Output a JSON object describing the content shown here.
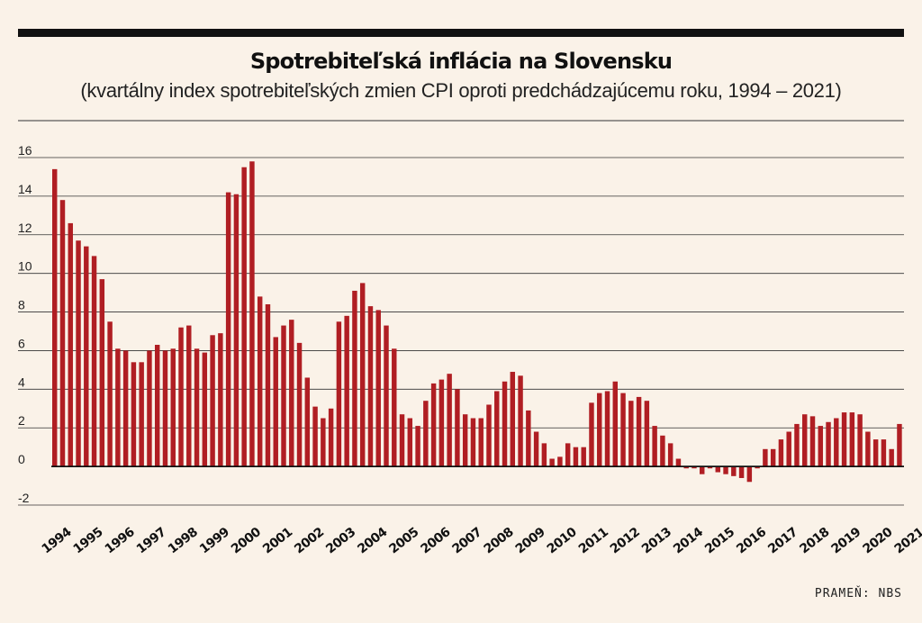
{
  "header": {
    "title": "Spotrebiteľská inflácia na Slovensku",
    "subtitle": "(kvartálny index spotrebiteľských zmien CPI oproti predchádzajúcemu roku, 1994 – 2021)"
  },
  "footer": {
    "source": "PRAMEŇ: NBS"
  },
  "colors": {
    "bar": "#b01e23",
    "background": "#faf2e8",
    "grid": "#333333"
  },
  "chart_data": {
    "type": "bar",
    "title": "Spotrebiteľská inflácia na Slovensku",
    "subtitle": "(kvartálny index spotrebiteľských zmien CPI oproti predchádzajúcemu roku, 1994 – 2021)",
    "xlabel": "",
    "ylabel": "",
    "ylim": [
      -2,
      16
    ],
    "y_ticks": [
      -2,
      0,
      2,
      4,
      6,
      8,
      10,
      12,
      14,
      16
    ],
    "grid": true,
    "years": [
      "1994",
      "1995",
      "1996",
      "1997",
      "1998",
      "1999",
      "2000",
      "2001",
      "2002",
      "2003",
      "2004",
      "2005",
      "2006",
      "2007",
      "2008",
      "2009",
      "2010",
      "2011",
      "2012",
      "2013",
      "2014",
      "2015",
      "2016",
      "2017",
      "2018",
      "2019",
      "2020",
      "2021"
    ],
    "values": [
      15.4,
      13.8,
      12.6,
      11.7,
      11.4,
      10.9,
      9.7,
      7.5,
      6.1,
      6.0,
      5.4,
      5.4,
      6.0,
      6.3,
      6.0,
      6.1,
      7.2,
      7.3,
      6.1,
      5.9,
      6.8,
      6.9,
      14.2,
      14.1,
      15.5,
      15.8,
      8.8,
      8.4,
      6.7,
      7.3,
      7.6,
      6.4,
      4.6,
      3.1,
      2.5,
      3.0,
      7.5,
      7.8,
      9.1,
      9.5,
      8.3,
      8.1,
      7.3,
      6.1,
      2.7,
      2.5,
      2.1,
      3.4,
      4.3,
      4.5,
      4.8,
      4.0,
      2.7,
      2.5,
      2.5,
      3.2,
      3.9,
      4.4,
      4.9,
      4.7,
      2.9,
      1.8,
      1.2,
      0.4,
      0.5,
      1.2,
      1.0,
      1.0,
      3.3,
      3.8,
      3.9,
      4.4,
      3.8,
      3.4,
      3.6,
      3.4,
      2.1,
      1.6,
      1.2,
      0.4,
      -0.1,
      -0.1,
      -0.4,
      -0.1,
      -0.3,
      -0.4,
      -0.5,
      -0.6,
      -0.8,
      -0.1,
      0.9,
      0.9,
      1.4,
      1.8,
      2.2,
      2.7,
      2.6,
      2.1,
      2.3,
      2.5,
      2.8,
      2.8,
      2.7,
      1.8,
      1.4,
      1.4,
      0.9,
      2.2
    ]
  }
}
